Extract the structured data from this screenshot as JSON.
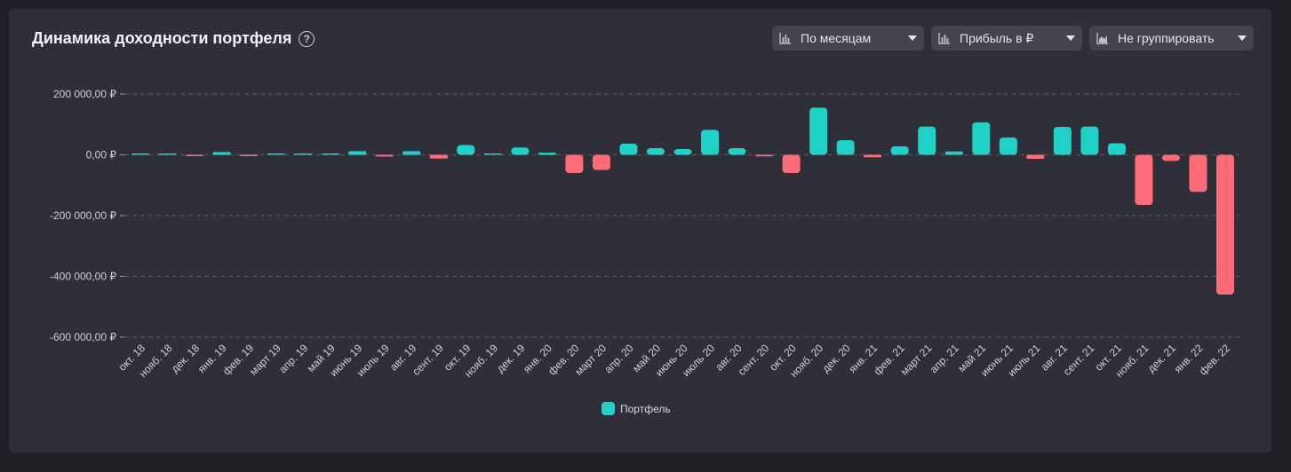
{
  "header": {
    "title": "Динамика доходности портфеля",
    "help_glyph": "?"
  },
  "controls": [
    {
      "label": "По месяцам",
      "icon": "bar-chart-icon"
    },
    {
      "label": "Прибыль в ₽",
      "icon": "bar-chart-icon"
    },
    {
      "label": "Не группировать",
      "icon": "area-chart-icon"
    }
  ],
  "colors": {
    "positive": "#1fd1c6",
    "negative": "#ff6b76",
    "grid": "#5b5b66",
    "tick_text": "#cfcfd6"
  },
  "chart_data": {
    "type": "bar",
    "categories": [
      "окт. 18",
      "нояб. 18",
      "дек. 18",
      "янв. 19",
      "фев. 19",
      "март 19",
      "апр. 19",
      "май 19",
      "июнь 19",
      "июль 19",
      "авг. 19",
      "сент. 19",
      "окт. 19",
      "нояб. 19",
      "дек. 19",
      "янв. 20",
      "фев. 20",
      "март 20",
      "апр. 20",
      "май 20",
      "июнь 20",
      "июль 20",
      "авг. 20",
      "сент. 20",
      "окт. 20",
      "нояб. 20",
      "дек. 20",
      "янв. 21",
      "фев. 21",
      "март 21",
      "апр. 21",
      "май 21",
      "июнь 21",
      "июль 21",
      "авг. 21",
      "сент. 21",
      "окт. 21",
      "нояб. 21",
      "дек. 21",
      "янв. 22",
      "фев. 22"
    ],
    "series": [
      {
        "name": "Портфель",
        "values": [
          2000,
          1000,
          -2000,
          9000,
          -3000,
          2000,
          4000,
          3000,
          12000,
          -6000,
          12000,
          -12000,
          32000,
          2000,
          24000,
          7000,
          -60000,
          -50000,
          37000,
          22000,
          19000,
          82000,
          22000,
          -5000,
          -60000,
          155000,
          48000,
          -8000,
          28000,
          93000,
          11000,
          107000,
          57000,
          -13000,
          92000,
          93000,
          38000,
          -165000,
          -20000,
          -122000,
          -460000
        ]
      }
    ],
    "ylim": [
      -600000,
      200000
    ],
    "yticks": [
      200000,
      0,
      -200000,
      -400000,
      -600000
    ],
    "ytick_labels": [
      "200 000,00 ₽",
      "0,00 ₽",
      "-200 000,00 ₽",
      "-400 000,00 ₽",
      "-600 000,00 ₽"
    ],
    "grid": true,
    "legend": "bottom-center"
  }
}
